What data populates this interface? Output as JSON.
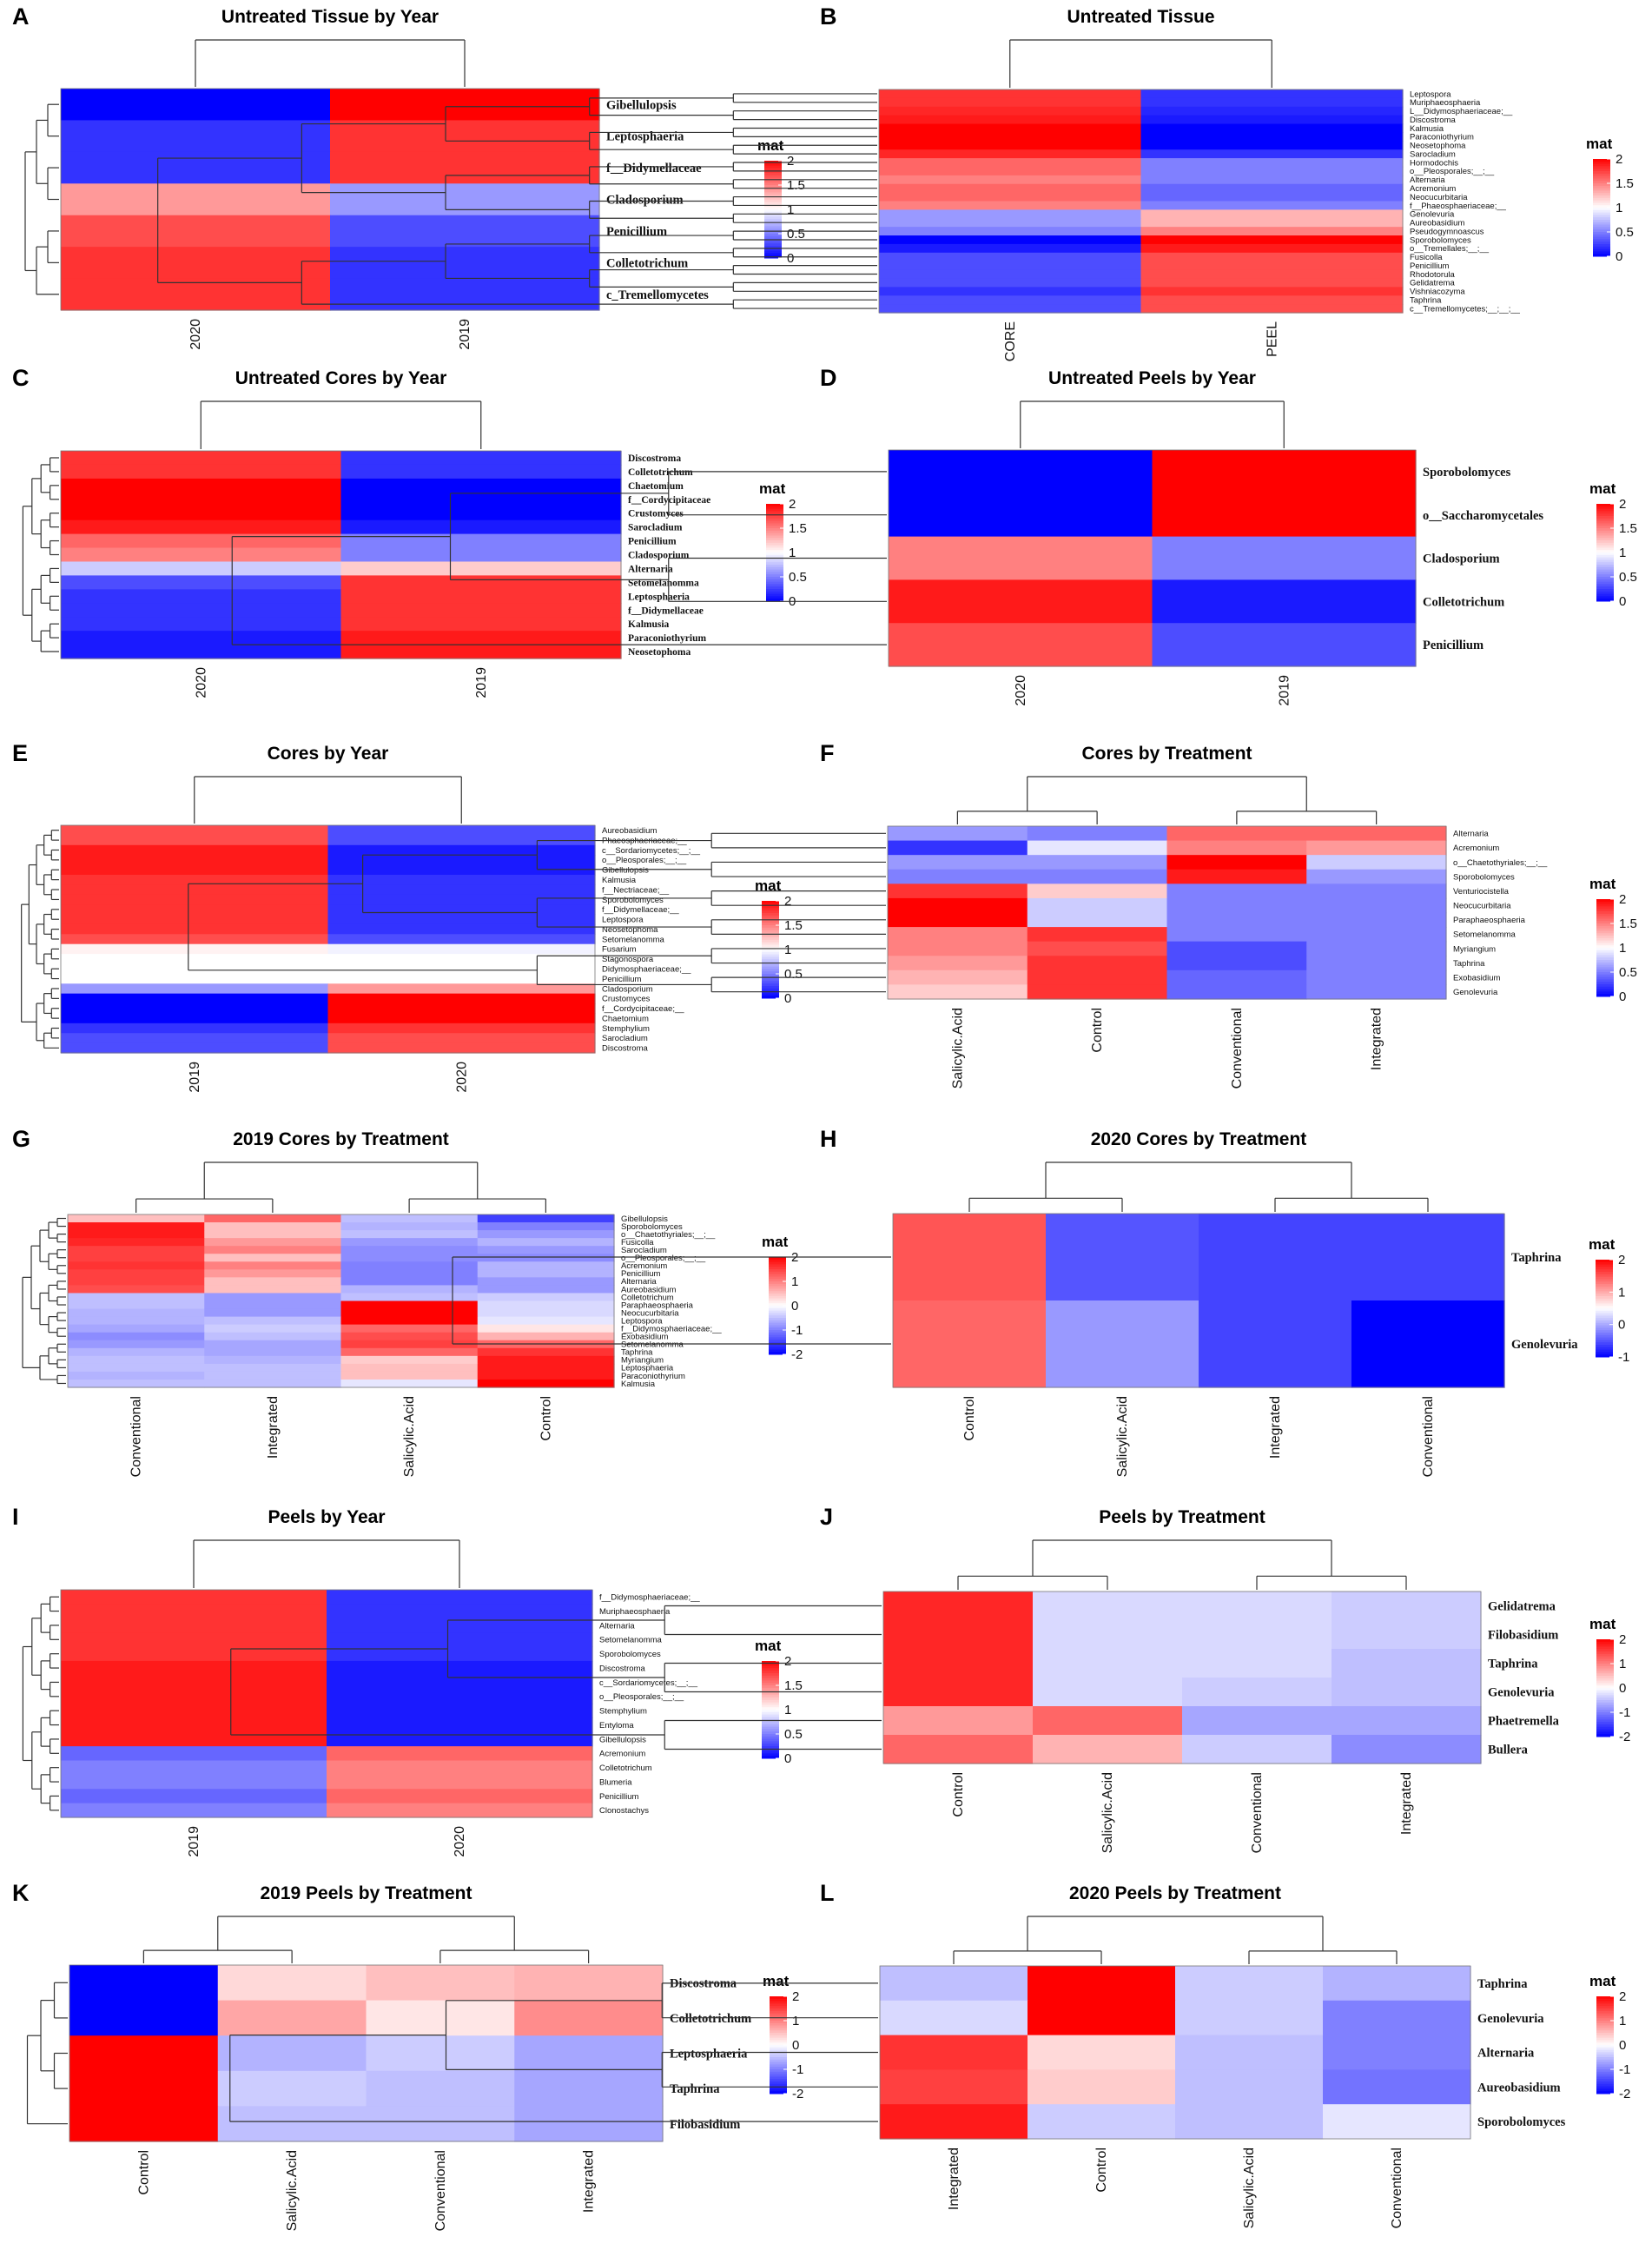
{
  "colors": {
    "low": "#0000ff",
    "mid": "#ffffff",
    "high": "#ff0000",
    "dendro": "#000000"
  },
  "chart_data": [
    {
      "type": "heatmap",
      "panel": "A",
      "title": "Untreated Tissue by Year",
      "columns": [
        "2020",
        "2019"
      ],
      "rows": [
        "Gibellulopsis",
        "Leptosphaeria",
        "f__Didymellaceae",
        "Cladosporium",
        "Penicillium",
        "Colletotrichum",
        "c_Tremellomycetes"
      ],
      "values": [
        [
          0,
          2
        ],
        [
          0.2,
          1.8
        ],
        [
          0.2,
          1.8
        ],
        [
          1.4,
          0.6
        ],
        [
          1.7,
          0.3
        ],
        [
          1.8,
          0.2
        ],
        [
          1.8,
          0.2
        ]
      ],
      "legend": {
        "title": "mat",
        "ticks": [
          "2",
          "1.5",
          "1",
          "0.5",
          "0"
        ],
        "min": 0,
        "max": 2
      },
      "label_size": "medium"
    },
    {
      "type": "heatmap",
      "panel": "B",
      "title": "Untreated Tissue",
      "columns": [
        "CORE",
        "PEEL"
      ],
      "rows": [
        "Leptospora",
        "Muriphaeosphaeria",
        "L__Didymosphaeriaceae;__",
        "Discostroma",
        "Kalmusia",
        "Paraconiothyrium",
        "Neosetophoma",
        "Sarocladium",
        "Hormodochis",
        "o__Pleosporales;__;__",
        "Alternaria",
        "Acremonium",
        "Neocucurbitaria",
        "f__Phaeosphaeriaceae;__",
        "Genolevuria",
        "Aureobasidium",
        "Pseudogymnoascus",
        "Sporobolomyces",
        "o__Tremellales;__;__",
        "Fusicolla",
        "Penicillium",
        "Rhodotorula",
        "Gelidatrema",
        "Vishniacozyma",
        "Taphrina",
        "c__Tremellomycetes;__;__;__"
      ],
      "values": [
        [
          1.8,
          0.2
        ],
        [
          1.8,
          0.2
        ],
        [
          1.85,
          0.15
        ],
        [
          1.9,
          0.1
        ],
        [
          2,
          0
        ],
        [
          2,
          0
        ],
        [
          2,
          0
        ],
        [
          1.85,
          0.2
        ],
        [
          1.6,
          0.5
        ],
        [
          1.6,
          0.5
        ],
        [
          1.5,
          0.5
        ],
        [
          1.6,
          0.4
        ],
        [
          1.6,
          0.4
        ],
        [
          1.5,
          0.5
        ],
        [
          0.6,
          1.3
        ],
        [
          0.6,
          1.3
        ],
        [
          0.5,
          1.5
        ],
        [
          0,
          2
        ],
        [
          0.1,
          1.9
        ],
        [
          0.3,
          1.7
        ],
        [
          0.3,
          1.7
        ],
        [
          0.3,
          1.7
        ],
        [
          0.3,
          1.7
        ],
        [
          0.2,
          1.8
        ],
        [
          0.3,
          1.7
        ],
        [
          0.3,
          1.7
        ]
      ],
      "legend": {
        "title": "mat",
        "ticks": [
          "2",
          "1.5",
          "1",
          "0.5",
          "0"
        ],
        "min": 0,
        "max": 2
      },
      "label_size": "tiny"
    },
    {
      "type": "heatmap",
      "panel": "C",
      "title": "Untreated Cores by Year",
      "columns": [
        "2020",
        "2019"
      ],
      "rows": [
        "Discostroma",
        "Colletotrichum",
        "Chaetomium",
        "f__Cordycipitaceae",
        "Crustomyces",
        "Sarocladium",
        "Penicillium",
        "Cladosporium",
        "Alternaria",
        "Setomelanomma",
        "Leptosphaeria",
        "f__Didymellaceae",
        "Kalmusia",
        "Paraconiothyrium",
        "Neosetophoma"
      ],
      "values": [
        [
          1.8,
          0.2
        ],
        [
          1.8,
          0.2
        ],
        [
          2,
          0
        ],
        [
          2,
          0
        ],
        [
          2,
          0
        ],
        [
          1.9,
          0.1
        ],
        [
          1.6,
          0.5
        ],
        [
          1.5,
          0.5
        ],
        [
          0.8,
          1.2
        ],
        [
          0.3,
          1.8
        ],
        [
          0.2,
          1.8
        ],
        [
          0.2,
          1.8
        ],
        [
          0.2,
          1.8
        ],
        [
          0.1,
          1.9
        ],
        [
          0.1,
          1.9
        ]
      ],
      "legend": {
        "title": "mat",
        "ticks": [
          "2",
          "1.5",
          "1",
          "0.5",
          "0"
        ],
        "min": 0,
        "max": 2
      },
      "label_size": "small"
    },
    {
      "type": "heatmap",
      "panel": "D",
      "title": "Untreated Peels by Year",
      "columns": [
        "2020",
        "2019"
      ],
      "rows": [
        "Sporobolomyces",
        "o__Saccharomycetales",
        "Cladosporium",
        "Colletotrichum",
        "Penicillium"
      ],
      "values": [
        [
          0,
          2
        ],
        [
          0,
          2
        ],
        [
          1.5,
          0.5
        ],
        [
          1.9,
          0.1
        ],
        [
          1.7,
          0.3
        ]
      ],
      "legend": {
        "title": "mat",
        "ticks": [
          "2",
          "1.5",
          "1",
          "0.5",
          "0"
        ],
        "min": 0,
        "max": 2
      },
      "label_size": "medium"
    },
    {
      "type": "heatmap",
      "panel": "E",
      "title": "Cores by Year",
      "columns": [
        "2019",
        "2020"
      ],
      "rows": [
        "Aureobasidium",
        "Phaeosphaeriaceae;__",
        "c__Sordariomycetes;__;__",
        "o__Pleosporales;__;__",
        "Gibellulopsis",
        "Kalmusia",
        "f__Nectriaceae;__",
        "Sporobolomyces",
        "f__Didymellaceae;__",
        "Leptospora",
        "Neosetophoma",
        "Setomelanomma",
        "Fusarium",
        "Stagonospora",
        "Didymosphaeriaceae;__",
        "Penicillium",
        "Cladosporium",
        "Crustomyces",
        "f__Cordycipitaceae;__",
        "Chaetomium",
        "Stemphylium",
        "Sarocladium",
        "Discostroma"
      ],
      "values": [
        [
          1.7,
          0.3
        ],
        [
          1.7,
          0.3
        ],
        [
          1.9,
          0.1
        ],
        [
          1.9,
          0.1
        ],
        [
          1.9,
          0.1
        ],
        [
          1.8,
          0.2
        ],
        [
          1.8,
          0.2
        ],
        [
          1.8,
          0.2
        ],
        [
          1.8,
          0.2
        ],
        [
          1.8,
          0.2
        ],
        [
          1.8,
          0.2
        ],
        [
          1.7,
          0.3
        ],
        [
          1.05,
          0.95
        ],
        [
          1,
          1
        ],
        [
          1,
          1
        ],
        [
          1,
          1
        ],
        [
          0.6,
          1.4
        ],
        [
          0,
          2
        ],
        [
          0,
          2
        ],
        [
          0,
          2
        ],
        [
          0.2,
          1.8
        ],
        [
          0.3,
          1.7
        ],
        [
          0.3,
          1.7
        ]
      ],
      "legend": {
        "title": "mat",
        "ticks": [
          "2",
          "1.5",
          "1",
          "0.5",
          "0"
        ],
        "min": 0,
        "max": 2
      },
      "label_size": "tiny"
    },
    {
      "type": "heatmap",
      "panel": "F",
      "title": "Cores by Treatment",
      "columns": [
        "Salicylic.Acid",
        "Control",
        "Conventional",
        "Integrated"
      ],
      "rows": [
        "Alternaria",
        "Acremonium",
        "o__Chaetothyriales;__;__",
        "Sporobolomyces",
        "Venturiocistella",
        "Neocucurbitaria",
        "Paraphaeosphaeria",
        "Setomelanomma",
        "Myriangium",
        "Taphrina",
        "Exobasidium",
        "Genolevuria"
      ],
      "values": [
        [
          0.6,
          0.5,
          1.6,
          1.6
        ],
        [
          0.2,
          0.9,
          1.5,
          1.4
        ],
        [
          0.6,
          0.6,
          2,
          0.8
        ],
        [
          0.5,
          0.5,
          1.9,
          0.6
        ],
        [
          1.8,
          1.2,
          0.5,
          0.5
        ],
        [
          2,
          0.8,
          0.5,
          0.5
        ],
        [
          2,
          0.8,
          0.5,
          0.5
        ],
        [
          1.5,
          1.8,
          0.5,
          0.5
        ],
        [
          1.5,
          1.7,
          0.3,
          0.5
        ],
        [
          1.4,
          1.8,
          0.3,
          0.5
        ],
        [
          1.3,
          1.8,
          0.4,
          0.5
        ],
        [
          1.2,
          1.8,
          0.4,
          0.5
        ]
      ],
      "legend": {
        "title": "mat",
        "ticks": [
          "2",
          "1.5",
          "1",
          "0.5",
          "0"
        ],
        "min": 0,
        "max": 2
      },
      "label_size": "tiny"
    },
    {
      "type": "heatmap",
      "panel": "G",
      "title": "2019 Cores by Treatment",
      "columns": [
        "Conventional",
        "Integrated",
        "Salicylic.Acid",
        "Control"
      ],
      "rows": [
        "Gibellulopsis",
        "Sporobolomyces",
        "o__Chaetothyriales;__;__",
        "Fusicolla",
        "Sarocladium",
        "o__Pleosporales;__;__",
        "Acremonium",
        "Penicillium",
        "Alternaria",
        "Aureobasidium",
        "Colletotrichum",
        "Paraphaeosphaeria",
        "Neocucurbitaria",
        "Leptospora",
        "f__Didymosphaeriaceae;__",
        "Exobasidium",
        "Setomelanomma",
        "Taphrina",
        "Myriangium",
        "Leptosphaeria",
        "Paraconiothyrium",
        "Kalmusia"
      ],
      "values": [
        [
          0.5,
          1.2,
          -0.5,
          -1.5
        ],
        [
          1.8,
          0.5,
          -0.6,
          -1
        ],
        [
          1.8,
          0.5,
          -0.5,
          -0.8
        ],
        [
          1.7,
          0.8,
          -0.8,
          -0.6
        ],
        [
          1.5,
          1,
          -0.9,
          -0.8
        ],
        [
          1.5,
          0.5,
          -0.9,
          -0.9
        ],
        [
          1.6,
          1,
          -1,
          -0.6
        ],
        [
          1.5,
          0.8,
          -1,
          -0.6
        ],
        [
          1.5,
          0.5,
          -1,
          -0.8
        ],
        [
          1.4,
          0.5,
          -0.6,
          -0.8
        ],
        [
          -0.5,
          -0.8,
          -0.5,
          -0.4
        ],
        [
          -0.5,
          -0.8,
          2,
          -0.3
        ],
        [
          -0.6,
          -0.8,
          2,
          -0.3
        ],
        [
          -0.6,
          -0.5,
          2,
          -0.2
        ],
        [
          -0.7,
          -0.4,
          1.2,
          0.2
        ],
        [
          -0.9,
          -0.5,
          1.4,
          0.6
        ],
        [
          -0.8,
          -0.7,
          1.5,
          1.2
        ],
        [
          -0.6,
          -0.7,
          1.2,
          1.6
        ],
        [
          -0.5,
          -0.6,
          0.4,
          1.8
        ],
        [
          -0.5,
          -0.5,
          0.5,
          1.8
        ],
        [
          -0.6,
          -0.5,
          0.5,
          1.8
        ],
        [
          -0.5,
          -0.5,
          -0.2,
          2
        ]
      ],
      "legend": {
        "title": "mat",
        "ticks": [
          "2",
          "1",
          "0",
          "-1",
          "-2"
        ],
        "min": -2,
        "max": 2
      },
      "label_size": "tiny"
    },
    {
      "type": "heatmap",
      "panel": "H",
      "title": "2020 Cores by Treatment",
      "columns": [
        "Control",
        "Salicylic.Acid",
        "Integrated",
        "Conventional"
      ],
      "rows": [
        "Taphrina",
        "Genolevuria"
      ],
      "values": [
        [
          1.5,
          -0.5,
          -0.6,
          -0.6
        ],
        [
          1.4,
          -0.1,
          -0.6,
          -1
        ]
      ],
      "legend": {
        "title": "mat",
        "ticks": [
          "2",
          "1",
          "0",
          "-1"
        ],
        "min": -1,
        "max": 2
      },
      "label_size": "medium"
    },
    {
      "type": "heatmap",
      "panel": "I",
      "title": "Peels by Year",
      "columns": [
        "2019",
        "2020"
      ],
      "rows": [
        "f__Didymosphaeriaceae;__",
        "Muriphaeosphaeria",
        "Alternaria",
        "Setomelanomma",
        "Sporobolomyces",
        "Discostroma",
        "c__Sordariomycetes;__;__",
        "o__Pleosporales;__;__",
        "Stemphylium",
        "Entyloma",
        "Gibellulopsis",
        "Acremonium",
        "Colletotrichum",
        "Blumeria",
        "Penicillium",
        "Clonostachys"
      ],
      "values": [
        [
          1.8,
          0.2
        ],
        [
          1.8,
          0.2
        ],
        [
          1.8,
          0.2
        ],
        [
          1.8,
          0.2
        ],
        [
          1.8,
          0.2
        ],
        [
          1.9,
          0.1
        ],
        [
          1.9,
          0.1
        ],
        [
          1.9,
          0.1
        ],
        [
          1.9,
          0.1
        ],
        [
          1.9,
          0.1
        ],
        [
          1.9,
          0.1
        ],
        [
          0.4,
          1.6
        ],
        [
          0.5,
          1.5
        ],
        [
          0.5,
          1.5
        ],
        [
          0.4,
          1.6
        ],
        [
          0.5,
          1.5
        ]
      ],
      "legend": {
        "title": "mat",
        "ticks": [
          "2",
          "1.5",
          "1",
          "0.5",
          "0"
        ],
        "min": 0,
        "max": 2
      },
      "label_size": "tiny"
    },
    {
      "type": "heatmap",
      "panel": "J",
      "title": "Peels by Treatment",
      "columns": [
        "Control",
        "Salicylic.Acid",
        "Conventional",
        "Integrated"
      ],
      "rows": [
        "Gelidatrema",
        "Filobasidium",
        "Taphrina",
        "Genolevuria",
        "Phaetremella",
        "Bullera"
      ],
      "values": [
        [
          1.7,
          -0.3,
          -0.3,
          -0.4
        ],
        [
          1.7,
          -0.3,
          -0.3,
          -0.4
        ],
        [
          1.7,
          -0.3,
          -0.3,
          -0.5
        ],
        [
          1.7,
          -0.3,
          -0.4,
          -0.5
        ],
        [
          0.8,
          1.2,
          -0.7,
          -0.7
        ],
        [
          1.2,
          0.6,
          -0.4,
          -0.9
        ]
      ],
      "legend": {
        "title": "mat",
        "ticks": [
          "2",
          "1",
          "0",
          "-1",
          "-2"
        ],
        "min": -2,
        "max": 2
      },
      "label_size": "medium"
    },
    {
      "type": "heatmap",
      "panel": "K",
      "title": "2019 Peels by Treatment",
      "columns": [
        "Control",
        "Salicylic.Acid",
        "Conventional",
        "Integrated"
      ],
      "rows": [
        "Discostroma",
        "Colletotrichum",
        "Leptosphaeria",
        "Taphrina",
        "Filobasidium"
      ],
      "values": [
        [
          -2,
          0.3,
          0.5,
          0.6
        ],
        [
          -2,
          0.7,
          0.2,
          0.9
        ],
        [
          2,
          -0.6,
          -0.4,
          -0.7
        ],
        [
          2,
          -0.4,
          -0.5,
          -0.7
        ],
        [
          2,
          -0.5,
          -0.5,
          -0.7
        ]
      ],
      "legend": {
        "title": "mat",
        "ticks": [
          "2",
          "1",
          "0",
          "-1",
          "-2"
        ],
        "min": -2,
        "max": 2
      },
      "label_size": "medium"
    },
    {
      "type": "heatmap",
      "panel": "L",
      "title": "2020 Peels by Treatment",
      "columns": [
        "Integrated",
        "Control",
        "Salicylic.Acid",
        "Conventional"
      ],
      "rows": [
        "Taphrina",
        "Genolevuria",
        "Alternaria",
        "Aureobasidium",
        "Sporobolomyces"
      ],
      "values": [
        [
          -0.5,
          2,
          -0.4,
          -0.6
        ],
        [
          -0.3,
          2,
          -0.4,
          -1
        ],
        [
          1.6,
          0.3,
          -0.5,
          -1
        ],
        [
          1.5,
          0.4,
          -0.5,
          -1.1
        ],
        [
          1.8,
          -0.4,
          -0.5,
          -0.2
        ]
      ],
      "legend": {
        "title": "mat",
        "ticks": [
          "2",
          "1",
          "0",
          "-1",
          "-2"
        ],
        "min": -2,
        "max": 2
      },
      "label_size": "medium"
    }
  ]
}
